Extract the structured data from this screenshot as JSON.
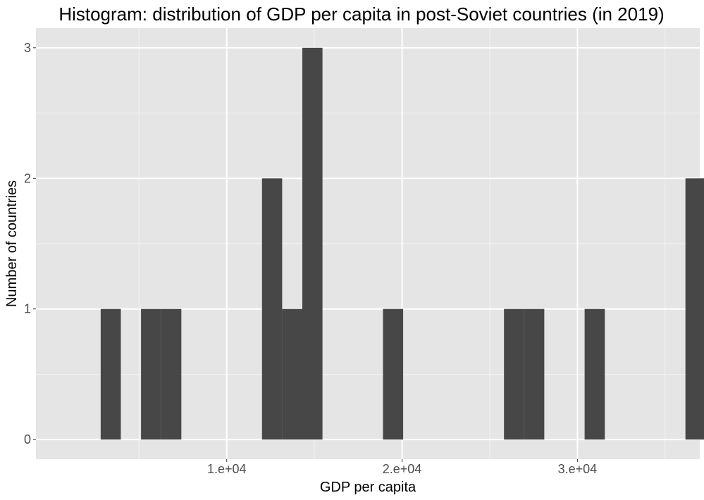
{
  "chart_data": {
    "type": "bar",
    "subtype": "histogram",
    "title": "Histogram: distribution of GDP per capita in post-Soviet countries (in 2019)",
    "xlabel": "GDP per capita",
    "ylabel": "Number of countries",
    "xlim": [
      -881,
      36978
    ],
    "ylim": [
      -0.15,
      3.15
    ],
    "x_ticks": [
      {
        "value": 10000,
        "label": "1.e+04"
      },
      {
        "value": 20000,
        "label": "2.e+04"
      },
      {
        "value": 30000,
        "label": "3.e+04"
      }
    ],
    "x_minor_ticks": [
      5000,
      15000,
      25000,
      35000
    ],
    "y_ticks": [
      {
        "value": 0,
        "label": "0"
      },
      {
        "value": 1,
        "label": "1"
      },
      {
        "value": 2,
        "label": "2"
      },
      {
        "value": 3,
        "label": "3"
      }
    ],
    "y_minor_ticks": [
      0.5,
      1.5,
      2.5
    ],
    "bin_width": 1150,
    "bins": [
      {
        "x": 3386,
        "count": 1
      },
      {
        "x": 5686,
        "count": 1
      },
      {
        "x": 6836,
        "count": 1
      },
      {
        "x": 12586,
        "count": 2
      },
      {
        "x": 13736,
        "count": 1
      },
      {
        "x": 14886,
        "count": 3
      },
      {
        "x": 19486,
        "count": 1
      },
      {
        "x": 26386,
        "count": 1
      },
      {
        "x": 27536,
        "count": 1
      },
      {
        "x": 30986,
        "count": 1
      },
      {
        "x": 36736,
        "count": 2
      }
    ],
    "grid": true,
    "colors": {
      "bar": "#474747",
      "panel": "#e5e5e5",
      "grid_major": "#ffffff",
      "grid_minor": "#f2f2f2",
      "tick_text": "#4d4d4d",
      "tick_mark": "#333333"
    }
  }
}
